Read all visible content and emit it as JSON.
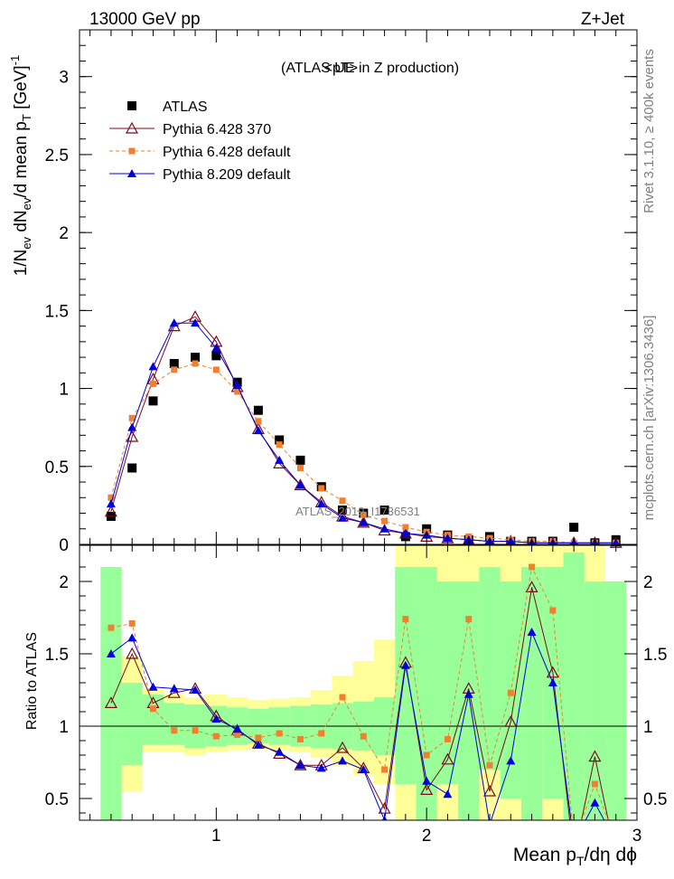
{
  "header": {
    "left": "13000 GeV pp",
    "right": "Z+Jet"
  },
  "side_labels": {
    "events": "Rivet 3.1.10, ≥ 400k events",
    "source": "mcplots.cern.ch [arXiv:1306.3436]"
  },
  "watermark": "ATLAS_2019_I1736531",
  "colors": {
    "atlas": "#000000",
    "p6_370": "#7a0a1a",
    "p6_default": "#f08030",
    "p8_default": "#0000dd",
    "band_green": "#99ff99",
    "band_yellow": "#ffff99"
  },
  "chart_data": [
    {
      "type": "line",
      "title": "<pT>",
      "subtitle": "(ATLAS UE in Z production)",
      "xlabel": "Mean p_T/dη dϕ",
      "ylabel": "1/N_ev dN_ev/d mean p_T [GeV]^-1",
      "xlim": [
        0.35,
        3.0
      ],
      "ylim": [
        0,
        3.3
      ],
      "y_ticks": [
        "0",
        "0.5",
        "1",
        "1.5",
        "2",
        "2.5",
        "3"
      ],
      "x": [
        0.5,
        0.6,
        0.7,
        0.8,
        0.9,
        1.0,
        1.1,
        1.2,
        1.3,
        1.4,
        1.5,
        1.6,
        1.7,
        1.8,
        1.9,
        2.0,
        2.1,
        2.2,
        2.3,
        2.4,
        2.5,
        2.6,
        2.7,
        2.8,
        2.9
      ],
      "legend": [
        "ATLAS",
        "Pythia 6.428 370",
        "Pythia 6.428 default",
        "Pythia 8.209 default"
      ],
      "series": [
        {
          "name": "ATLAS",
          "values": [
            0.18,
            0.49,
            0.92,
            1.16,
            1.2,
            1.21,
            1.04,
            0.86,
            0.67,
            0.54,
            0.37,
            0.22,
            0.2,
            0.22,
            0.05,
            0.1,
            0.06,
            0.03,
            0.05,
            0.02,
            0.02,
            0.02,
            0.11,
            0.01,
            0.03
          ]
        },
        {
          "name": "Pythia 6.428 370",
          "values": [
            0.21,
            0.69,
            1.06,
            1.4,
            1.46,
            1.3,
            1.01,
            0.74,
            0.52,
            0.38,
            0.27,
            0.18,
            0.14,
            0.09,
            0.07,
            0.05,
            0.04,
            0.03,
            0.02,
            0.02,
            0.01,
            0.01,
            0.01,
            0.01,
            0.01
          ]
        },
        {
          "name": "Pythia 6.428 default",
          "values": [
            0.3,
            0.81,
            1.03,
            1.12,
            1.16,
            1.12,
            0.98,
            0.79,
            0.64,
            0.49,
            0.36,
            0.28,
            0.19,
            0.15,
            0.11,
            0.08,
            0.06,
            0.05,
            0.04,
            0.03,
            0.02,
            0.02,
            0.01,
            0.01,
            0.01
          ]
        },
        {
          "name": "Pythia 8.209 default",
          "values": [
            0.26,
            0.75,
            1.14,
            1.42,
            1.42,
            1.26,
            1.02,
            0.73,
            0.54,
            0.38,
            0.26,
            0.17,
            0.14,
            0.1,
            0.07,
            0.06,
            0.04,
            0.03,
            0.02,
            0.02,
            0.01,
            0.01,
            0.01,
            0.01,
            0.01
          ]
        }
      ]
    },
    {
      "type": "line",
      "ylabel": "Ratio to ATLAS",
      "xlabel": "Mean p_T/dη dϕ",
      "xlim": [
        0.35,
        3.0
      ],
      "ylim": [
        0.35,
        2.25
      ],
      "x_ticks": [
        "1",
        "2",
        "3"
      ],
      "y_ticks": [
        "0.5",
        "1",
        "1.5",
        "2"
      ],
      "x": [
        0.5,
        0.6,
        0.7,
        0.8,
        0.9,
        1.0,
        1.1,
        1.2,
        1.3,
        1.4,
        1.5,
        1.6,
        1.7,
        1.8,
        1.9,
        2.0,
        2.1,
        2.2,
        2.3,
        2.4,
        2.5,
        2.6,
        2.7,
        2.8,
        2.9
      ],
      "series": [
        {
          "name": "Pythia 6.428 370",
          "values": [
            1.16,
            1.5,
            1.16,
            1.23,
            1.26,
            1.07,
            0.97,
            0.88,
            0.81,
            0.73,
            0.73,
            0.85,
            0.71,
            0.43,
            1.44,
            0.56,
            0.77,
            1.26,
            0.55,
            1.03,
            1.96,
            1.37,
            0.1,
            0.79,
            0.1
          ]
        },
        {
          "name": "Pythia 6.428 default",
          "values": [
            1.68,
            1.71,
            1.12,
            0.97,
            0.97,
            0.93,
            0.94,
            0.92,
            0.95,
            0.91,
            0.95,
            1.2,
            0.93,
            0.7,
            1.74,
            0.8,
            0.91,
            1.74,
            0.73,
            1.23,
            2.1,
            1.8,
            0.2,
            0.6,
            0.2
          ]
        },
        {
          "name": "Pythia 8.209 default",
          "values": [
            1.5,
            1.61,
            1.27,
            1.26,
            1.25,
            1.05,
            0.98,
            0.87,
            0.82,
            0.73,
            0.71,
            0.76,
            0.7,
            0.35,
            1.42,
            0.62,
            0.53,
            1.22,
            0.32,
            0.76,
            1.65,
            1.3,
            0.2,
            0.47,
            0.2
          ]
        }
      ],
      "band_green": [
        [
          0.33,
          2.1
        ],
        [
          0.73,
          1.3
        ],
        [
          0.87,
          1.22
        ],
        [
          0.87,
          1.16
        ],
        [
          0.85,
          1.15
        ],
        [
          0.86,
          1.14
        ],
        [
          0.87,
          1.13
        ],
        [
          0.88,
          1.12
        ],
        [
          0.87,
          1.13
        ],
        [
          0.86,
          1.14
        ],
        [
          0.85,
          1.15
        ],
        [
          0.84,
          1.16
        ],
        [
          0.83,
          1.17
        ],
        [
          0.8,
          1.2
        ],
        [
          0.6,
          2.1
        ],
        [
          0.3,
          2.1
        ],
        [
          0.6,
          2.0
        ],
        [
          0.3,
          2.0
        ],
        [
          0.7,
          2.1
        ],
        [
          0.5,
          2.0
        ],
        [
          0.3,
          2.1
        ],
        [
          0.5,
          2.1
        ],
        [
          0.3,
          2.2
        ],
        [
          0.3,
          2.0
        ],
        [
          0.3,
          2.0
        ]
      ],
      "band_yellow": [
        [
          0.25,
          2.1
        ],
        [
          0.55,
          1.48
        ],
        [
          0.82,
          1.26
        ],
        [
          0.82,
          1.22
        ],
        [
          0.8,
          1.2
        ],
        [
          0.82,
          1.22
        ],
        [
          0.83,
          1.2
        ],
        [
          0.84,
          1.18
        ],
        [
          0.83,
          1.19
        ],
        [
          0.82,
          1.2
        ],
        [
          0.78,
          1.25
        ],
        [
          0.72,
          1.35
        ],
        [
          0.66,
          1.45
        ],
        [
          0.6,
          1.6
        ],
        [
          0.3,
          2.3
        ],
        [
          0.25,
          2.3
        ],
        [
          0.3,
          2.3
        ],
        [
          0.25,
          2.3
        ],
        [
          0.3,
          2.3
        ],
        [
          0.25,
          2.3
        ],
        [
          0.25,
          2.3
        ],
        [
          0.25,
          2.3
        ],
        [
          0.25,
          2.3
        ],
        [
          0.25,
          2.3
        ],
        [
          0.25,
          2.0
        ]
      ]
    }
  ]
}
